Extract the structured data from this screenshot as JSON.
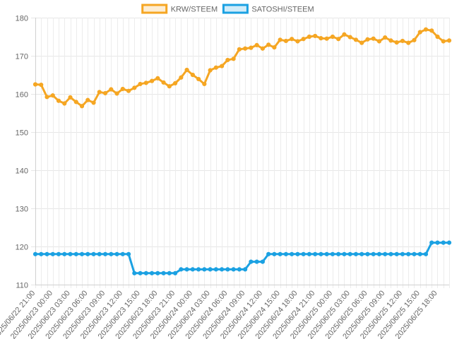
{
  "chart_data": {
    "type": "line",
    "title": "",
    "xlabel": "",
    "ylabel": "",
    "ylim": [
      110,
      180
    ],
    "yticks": [
      110,
      120,
      130,
      140,
      150,
      160,
      170,
      180
    ],
    "grid": true,
    "legend_position": "top-center",
    "x_tick_labels": [
      "2025/06/22 21:00",
      "2025/06/23 00:00",
      "2025/06/23 03:00",
      "2025/06/23 06:00",
      "2025/06/23 09:00",
      "2025/06/23 12:00",
      "2025/06/23 15:00",
      "2025/06/23 18:00",
      "2025/06/23 21:00",
      "2025/06/24 00:00",
      "2025/06/24 03:00",
      "2025/06/24 06:00",
      "2025/06/24 09:00",
      "2025/06/24 12:00",
      "2025/06/24 15:00",
      "2025/06/24 18:00",
      "2025/06/24 21:00",
      "2025/06/25 00:00",
      "2025/06/25 03:00",
      "2025/06/25 06:00",
      "2025/06/25 09:00",
      "2025/06/25 12:00",
      "2025/06/25 15:00",
      "2025/06/25 18:00"
    ],
    "series": [
      {
        "name": "KRW/STEEM",
        "color": "#f5a623",
        "values": [
          162.5,
          162.4,
          159.2,
          159.6,
          158.2,
          157.5,
          159.1,
          157.9,
          156.8,
          158.4,
          157.7,
          160.5,
          160.2,
          161.2,
          160.1,
          161.3,
          160.8,
          161.6,
          162.6,
          162.9,
          163.4,
          164.1,
          163.0,
          162.0,
          162.8,
          164.3,
          166.3,
          165.0,
          163.9,
          162.6,
          166.2,
          166.9,
          167.3,
          168.9,
          169.2,
          171.7,
          171.9,
          172.1,
          172.8,
          171.9,
          172.9,
          172.2,
          174.2,
          173.9,
          174.4,
          173.8,
          174.4,
          175.0,
          175.2,
          174.6,
          174.5,
          175.0,
          174.4,
          175.6,
          174.9,
          174.2,
          173.4,
          174.3,
          174.5,
          173.8,
          174.8,
          174.0,
          173.5,
          173.9,
          173.4,
          174.1,
          176.2,
          176.9,
          176.6,
          175.0,
          173.8,
          174.0
        ]
      },
      {
        "name": "SATOSHI/STEEM",
        "color": "#1ba1e2",
        "values": [
          118,
          118,
          118,
          118,
          118,
          118,
          118,
          118,
          118,
          118,
          118,
          118,
          118,
          118,
          118,
          118,
          118,
          113,
          113,
          113,
          113,
          113,
          113,
          113,
          113,
          114,
          114,
          114,
          114,
          114,
          114,
          114,
          114,
          114,
          114,
          114,
          114,
          116,
          116,
          116,
          118,
          118,
          118,
          118,
          118,
          118,
          118,
          118,
          118,
          118,
          118,
          118,
          118,
          118,
          118,
          118,
          118,
          118,
          118,
          118,
          118,
          118,
          118,
          118,
          118,
          118,
          118,
          118,
          121,
          121,
          121,
          121
        ]
      }
    ]
  }
}
